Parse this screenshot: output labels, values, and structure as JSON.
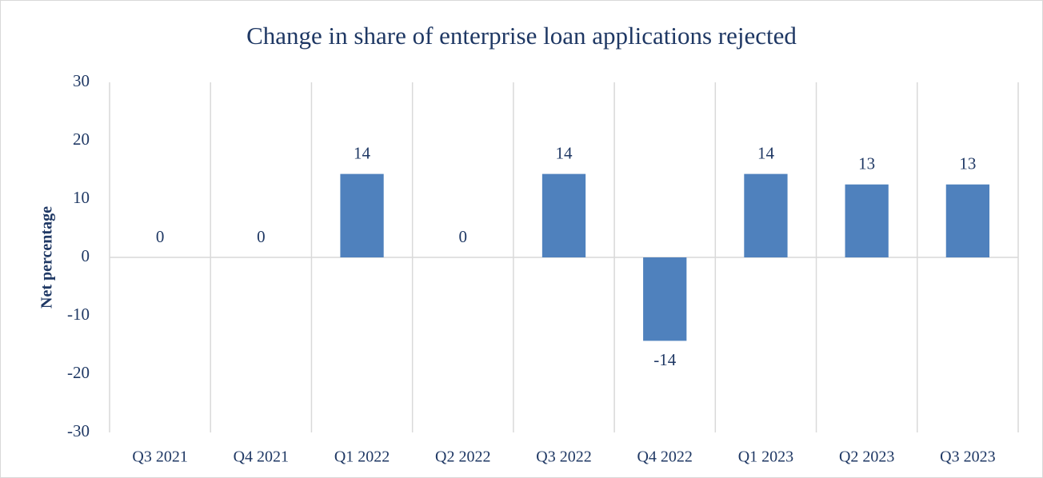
{
  "chart_data": {
    "type": "bar",
    "title": "Change in share of enterprise loan applications rejected",
    "y_label": "Net percentage",
    "categories": [
      "Q3 2021",
      "Q4 2021",
      "Q1 2022",
      "Q2 2022",
      "Q3 2022",
      "Q4 2022",
      "Q1 2023",
      "Q2 2023",
      "Q3 2023"
    ],
    "values": [
      0,
      0,
      14.3,
      0,
      14.3,
      -14.3,
      14.3,
      12.5,
      12.5
    ],
    "value_labels": [
      "0",
      "0",
      "14",
      "0",
      "14",
      "-14",
      "14",
      "13",
      "13"
    ],
    "color": "#4f81bd",
    "ylim": [
      -30,
      30
    ],
    "yticks": [
      -30,
      -20,
      -10,
      0,
      10,
      20,
      30
    ],
    "grid": false
  }
}
